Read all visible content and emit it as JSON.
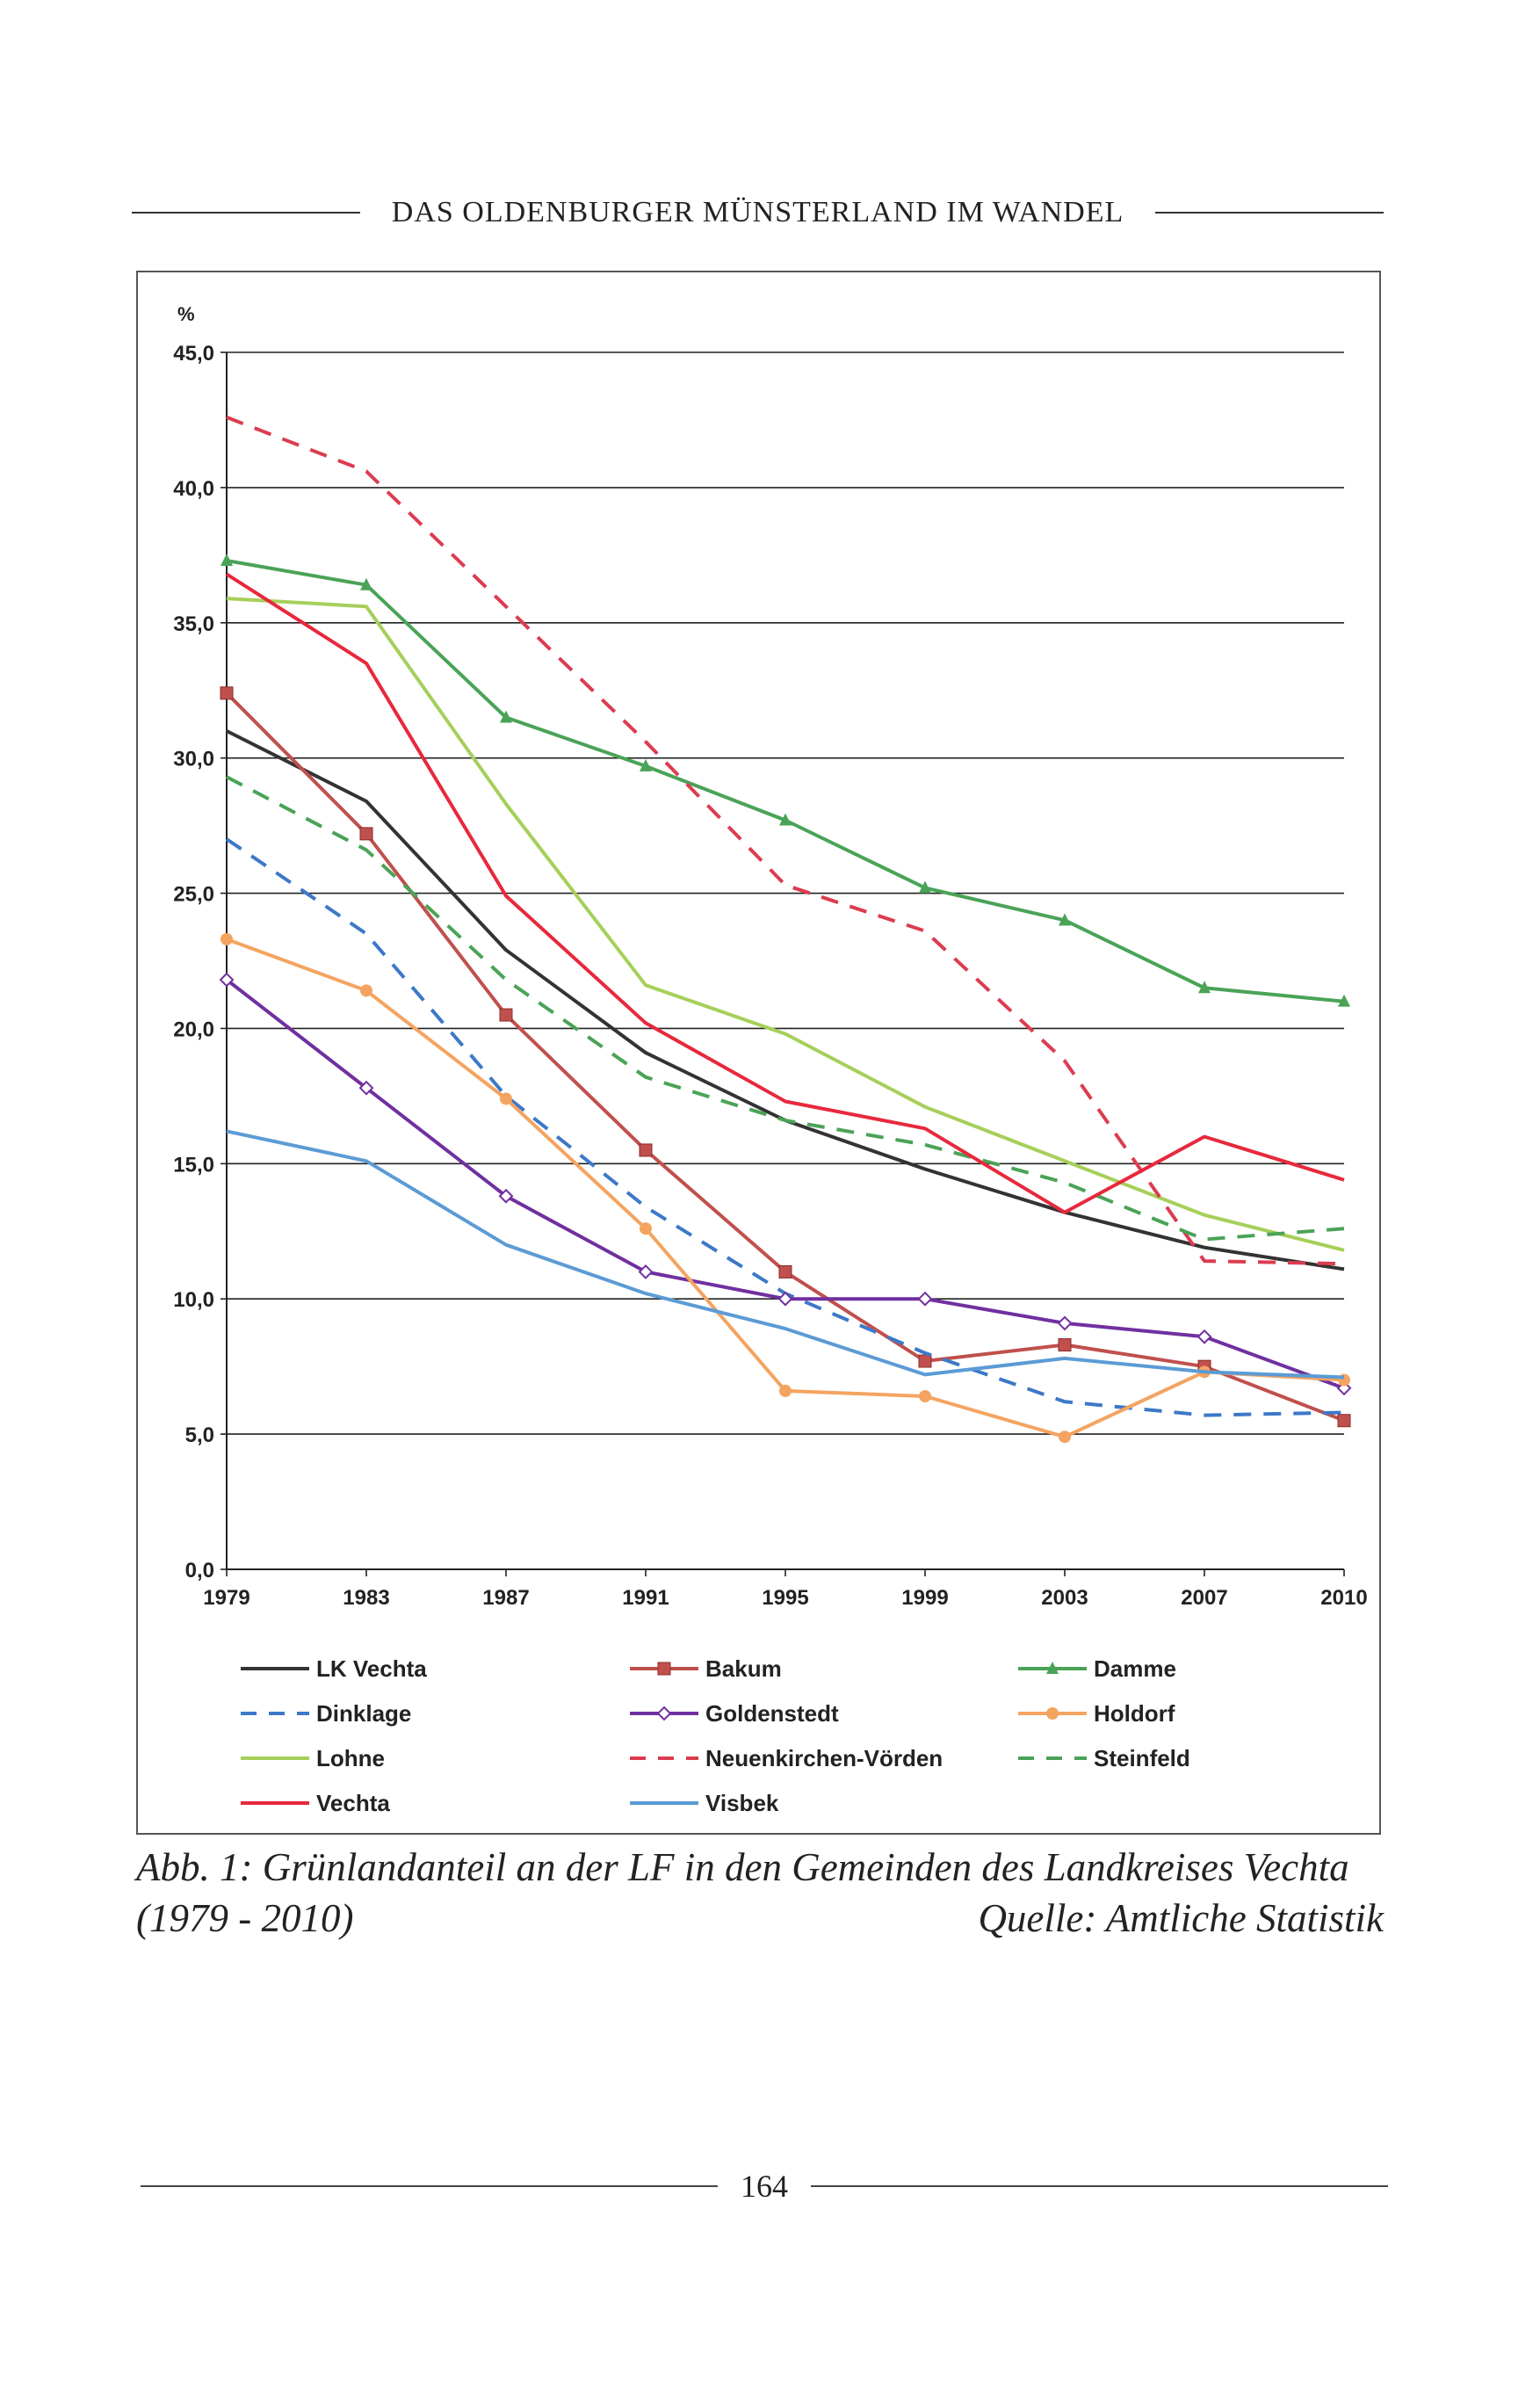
{
  "header": {
    "title": "DAS OLDENBURGER MÜNSTERLAND IM WANDEL"
  },
  "caption": {
    "line1": "Abb. 1: Grünlandanteil an der LF in den Gemeinden des Landkreises Vechta",
    "line2_left": "(1979 - 2010)",
    "line2_right": "Quelle: Amtliche Statistik"
  },
  "footer": {
    "page_number": "164"
  },
  "chart_data": {
    "type": "line",
    "title": "",
    "ylabel": "%",
    "xlabel": "",
    "ylim": [
      0,
      45
    ],
    "yticks": [
      "0,0",
      "5,0",
      "10,0",
      "15,0",
      "20,0",
      "25,0",
      "30,0",
      "35,0",
      "40,0",
      "45,0"
    ],
    "ytick_values": [
      0,
      5,
      10,
      15,
      20,
      25,
      30,
      35,
      40,
      45
    ],
    "grid": true,
    "legend_position": "bottom",
    "categories": [
      "1979",
      "1983",
      "1987",
      "1991",
      "1995",
      "1999",
      "2003",
      "2007",
      "2010"
    ],
    "series": [
      {
        "name": "LK Vechta",
        "color": "#333333",
        "dash": "solid",
        "marker": "none",
        "values": [
          31.0,
          28.4,
          22.9,
          19.1,
          16.6,
          14.8,
          13.2,
          11.9,
          11.1
        ]
      },
      {
        "name": "Bakum",
        "color": "#c0504d",
        "dash": "solid",
        "marker": "square",
        "values": [
          32.4,
          27.2,
          20.5,
          15.5,
          11.0,
          7.7,
          8.3,
          7.5,
          5.5
        ]
      },
      {
        "name": "Damme",
        "color": "#4aa357",
        "dash": "solid",
        "marker": "triangle",
        "values": [
          37.3,
          36.4,
          31.5,
          29.7,
          27.7,
          25.2,
          24.0,
          21.5,
          21.0
        ]
      },
      {
        "name": "Dinklage",
        "color": "#3d78c8",
        "dash": "dashed",
        "marker": "none",
        "values": [
          27.0,
          23.5,
          17.5,
          13.4,
          10.2,
          8.0,
          6.2,
          5.7,
          5.8
        ]
      },
      {
        "name": "Goldenstedt",
        "color": "#7030a0",
        "dash": "solid",
        "marker": "diamond",
        "values": [
          21.8,
          17.8,
          13.8,
          11.0,
          10.0,
          10.0,
          9.1,
          8.6,
          6.7
        ]
      },
      {
        "name": "Holdorf",
        "color": "#f4a460",
        "dash": "solid",
        "marker": "circle",
        "values": [
          23.3,
          21.4,
          17.4,
          12.6,
          6.6,
          6.4,
          4.9,
          7.3,
          7.0
        ]
      },
      {
        "name": "Lohne",
        "color": "#a6cf5a",
        "dash": "solid",
        "marker": "none",
        "values": [
          35.9,
          35.6,
          28.3,
          21.6,
          19.8,
          17.1,
          15.1,
          13.1,
          11.8
        ]
      },
      {
        "name": "Neuenkirchen-Vörden",
        "color": "#dc3c50",
        "dash": "dashed",
        "marker": "none",
        "values": [
          42.6,
          40.6,
          35.6,
          30.6,
          25.3,
          23.6,
          18.8,
          11.4,
          11.3
        ]
      },
      {
        "name": "Steinfeld",
        "color": "#4aa357",
        "dash": "dashed",
        "marker": "none",
        "values": [
          29.3,
          26.6,
          21.8,
          18.2,
          16.6,
          15.7,
          14.3,
          12.2,
          12.6
        ]
      },
      {
        "name": "Vechta",
        "color": "#e8283c",
        "dash": "solid",
        "marker": "none",
        "values": [
          36.8,
          33.5,
          24.9,
          20.2,
          17.3,
          16.3,
          13.2,
          16.0,
          14.4
        ]
      },
      {
        "name": "Visbek",
        "color": "#5b9bd5",
        "dash": "solid",
        "marker": "none",
        "values": [
          16.2,
          15.1,
          12.0,
          10.2,
          8.9,
          7.2,
          7.8,
          7.3,
          7.1
        ]
      }
    ]
  }
}
